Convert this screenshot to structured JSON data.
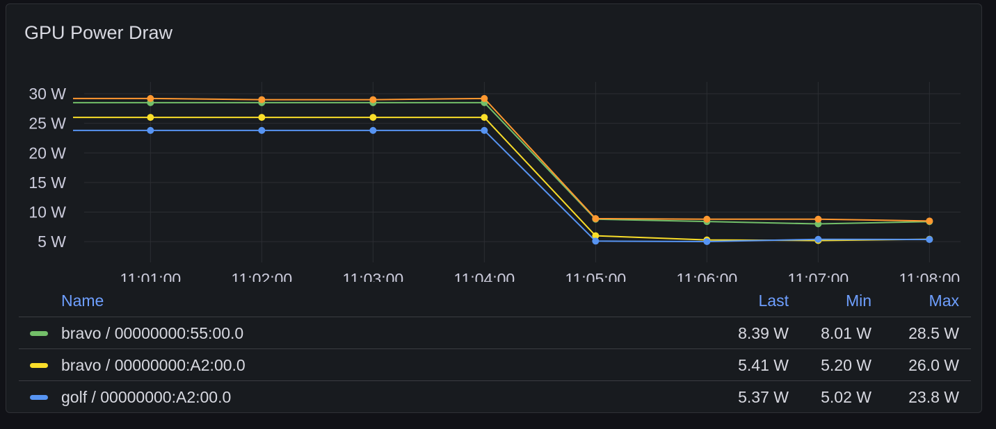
{
  "panel": {
    "title": "GPU Power Draw"
  },
  "legend": {
    "headers": {
      "name": "Name",
      "last": "Last",
      "min": "Min",
      "max": "Max"
    },
    "rows": [
      {
        "name": "bravo / 00000000:55:00.0",
        "last": "8.39 W",
        "min": "8.01 W",
        "max": "28.5 W",
        "color": "#73bf69"
      },
      {
        "name": "bravo / 00000000:A2:00.0",
        "last": "5.41 W",
        "min": "5.20 W",
        "max": "26.0 W",
        "color": "#fade2a"
      },
      {
        "name": "golf / 00000000:A2:00.0",
        "last": "5.37 W",
        "min": "5.02 W",
        "max": "23.8 W",
        "color": "#5794f2"
      }
    ]
  },
  "chart_data": {
    "type": "line",
    "title": "GPU Power Draw",
    "x": [
      "11:01:00",
      "11:02:00",
      "11:03:00",
      "11:04:00",
      "11:05:00",
      "11:06:00",
      "11:07:00",
      "11:08:00"
    ],
    "x_start": "11:00:25",
    "y_ticks": [
      "5 W",
      "10 W",
      "15 W",
      "20 W",
      "25 W",
      "30 W"
    ],
    "y_tick_values": [
      5,
      10,
      15,
      20,
      25,
      30
    ],
    "ylim": [
      1.5,
      32
    ],
    "grid": true,
    "legend_position": "bottom",
    "series": [
      {
        "name": "bravo / 00000000:55:00.0",
        "color": "#73bf69",
        "values": [
          28.5,
          28.5,
          28.5,
          28.5,
          8.8,
          8.4,
          8.01,
          8.39
        ]
      },
      {
        "name": "bravo / 00000000:A2:00.0",
        "color": "#fade2a",
        "values": [
          26.0,
          26.0,
          26.0,
          26.0,
          6.0,
          5.3,
          5.2,
          5.41
        ]
      },
      {
        "name": "golf / 00000000:A2:00.0",
        "color": "#5794f2",
        "values": [
          23.8,
          23.8,
          23.8,
          23.8,
          5.1,
          5.02,
          5.4,
          5.37
        ]
      },
      {
        "name": "",
        "color": "#ff9830",
        "values": [
          29.2,
          29.0,
          29.0,
          29.2,
          8.9,
          8.8,
          8.8,
          8.5
        ]
      }
    ]
  }
}
